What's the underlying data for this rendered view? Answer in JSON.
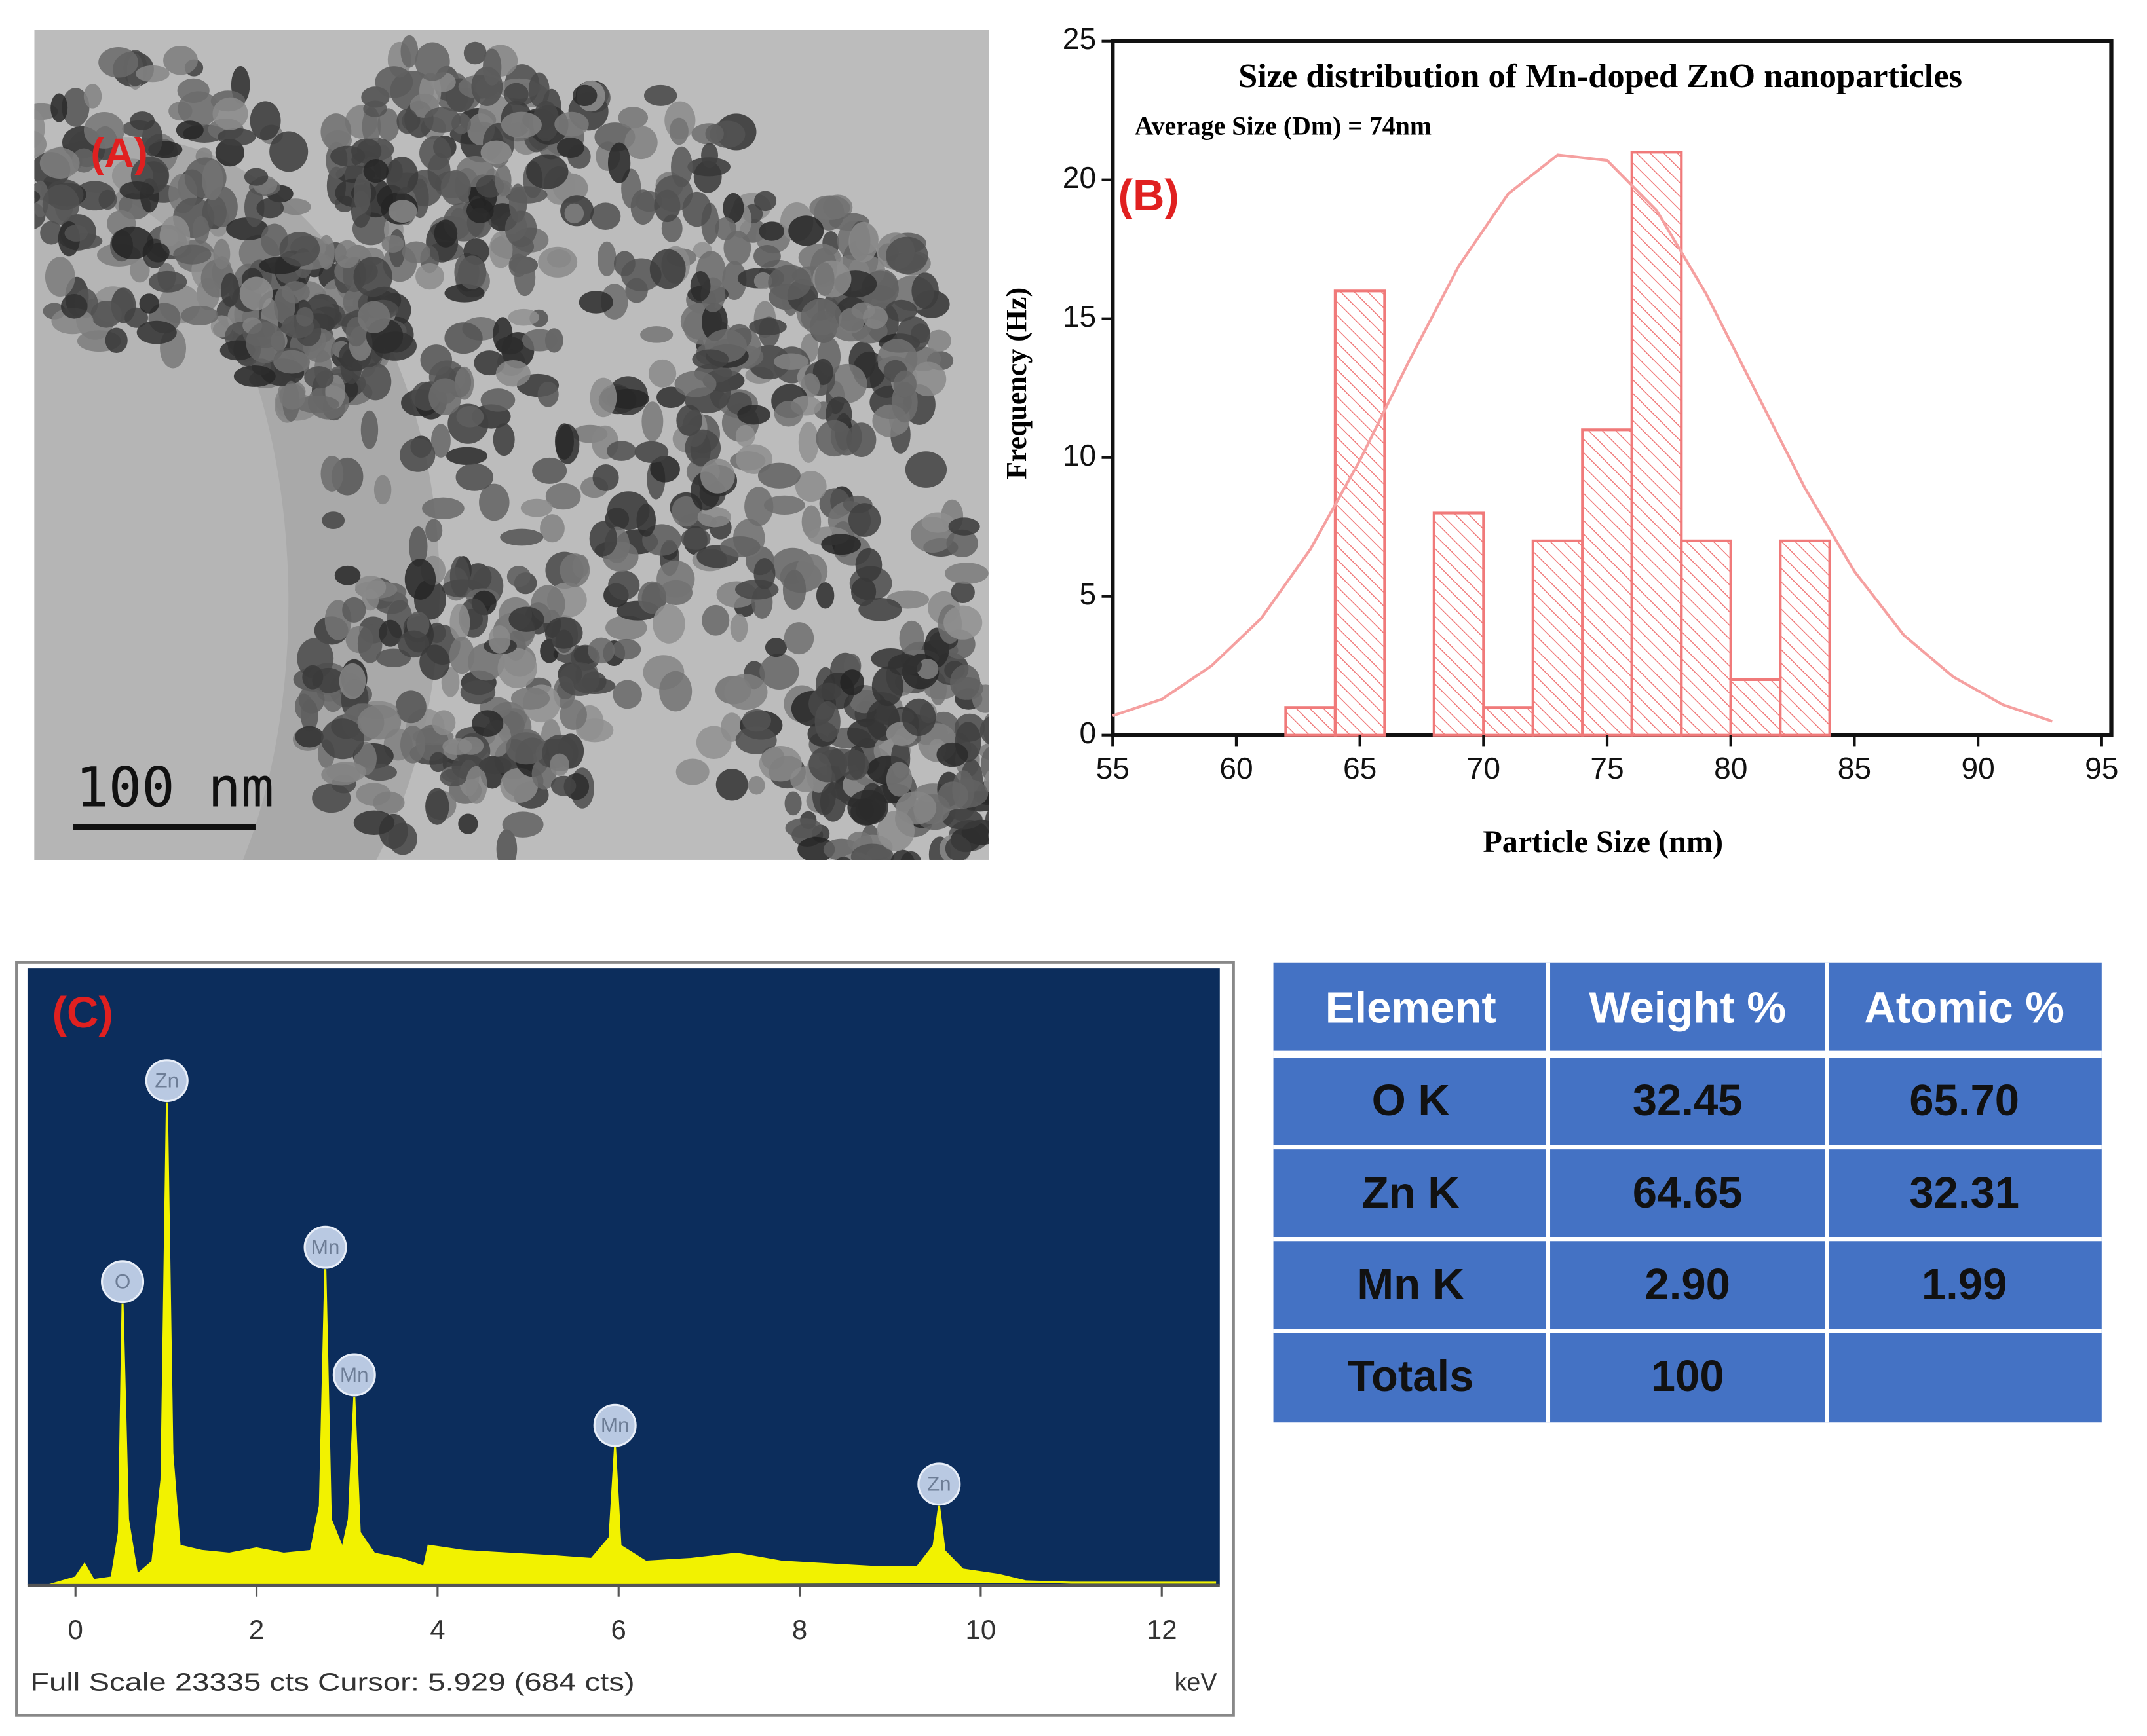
{
  "panel_a": {
    "label": "(A)",
    "scale_bar": "100 nm"
  },
  "chart_data": [
    {
      "type": "histogram",
      "title": "Size distribution of Mn-doped ZnO nanoparticles",
      "subtitle": "Average Size (Dm) = 74nm",
      "panel_label": "(B)",
      "x_label": "Particle Size (nm)",
      "y_label": "Frequency (Hz)",
      "bins": [
        62,
        64,
        66,
        68,
        70,
        72,
        74,
        76,
        78,
        80,
        82,
        84
      ],
      "values": [
        1,
        16,
        0,
        8,
        1,
        7,
        11,
        21,
        7,
        2,
        7
      ],
      "color": "#f07a7a",
      "fit": {
        "x": [
          55,
          57,
          59,
          61,
          63,
          65,
          67,
          69,
          71,
          73,
          75,
          77,
          79,
          81,
          83,
          85,
          87,
          89,
          91,
          93
        ],
        "values": [
          0.7,
          1.3,
          2.5,
          4.2,
          6.7,
          9.9,
          13.5,
          16.9,
          19.5,
          20.9,
          20.7,
          18.9,
          15.9,
          12.4,
          8.9,
          5.9,
          3.6,
          2.1,
          1.1,
          0.5
        ],
        "color": "#f5a0a0"
      },
      "xlim": [
        55,
        95
      ],
      "xticks": [
        55,
        60,
        65,
        70,
        75,
        80,
        85,
        90,
        95
      ],
      "ylim": [
        0,
        25
      ],
      "yticks": [
        0,
        5,
        10,
        15,
        20,
        25
      ]
    },
    {
      "type": "area",
      "panel_label": "(C)",
      "x_label": "keV",
      "footer": "Full Scale 23335 cts Cursor: 5.929  (684 cts)",
      "color": "#f2f200",
      "x": [
        -0.3,
        0.0,
        0.1,
        0.2,
        0.4,
        0.48,
        0.52,
        0.58,
        0.68,
        0.85,
        0.95,
        1.01,
        1.07,
        1.15,
        1.4,
        1.7,
        2.0,
        2.3,
        2.6,
        2.7,
        2.76,
        2.82,
        2.95,
        3.02,
        3.08,
        3.14,
        3.3,
        3.6,
        3.85,
        3.9,
        4.3,
        4.8,
        5.3,
        5.7,
        5.9,
        5.96,
        6.02,
        6.3,
        6.8,
        7.3,
        7.8,
        8.3,
        8.8,
        9.3,
        9.48,
        9.54,
        9.6,
        9.8,
        10.2,
        10.5,
        11,
        12,
        12.6
      ],
      "values": [
        0,
        300,
        800,
        200,
        300,
        2000,
        10650,
        2500,
        400,
        900,
        4000,
        18250,
        5000,
        1500,
        1300,
        1200,
        1400,
        1200,
        1300,
        3000,
        11950,
        2500,
        1400,
        2500,
        7130,
        2000,
        1200,
        1000,
        700,
        1500,
        1300,
        1200,
        1100,
        1000,
        1800,
        5220,
        1500,
        900,
        1000,
        1200,
        900,
        800,
        700,
        700,
        1500,
        3000,
        1300,
        600,
        400,
        150,
        100,
        100,
        100
      ],
      "annotations": [
        {
          "text": "O",
          "x": 0.52,
          "y": 10650
        },
        {
          "text": "Zn",
          "x": 1.01,
          "y": 18250
        },
        {
          "text": "Mn",
          "x": 2.76,
          "y": 11950
        },
        {
          "text": "Mn",
          "x": 3.08,
          "y": 7130
        },
        {
          "text": "Mn",
          "x": 5.96,
          "y": 5220
        },
        {
          "text": "Zn",
          "x": 9.54,
          "y": 3000
        }
      ],
      "xlim": [
        -0.5,
        12.6
      ],
      "xticks": [
        0,
        2,
        4,
        6,
        8,
        10,
        12
      ],
      "ylim": [
        0,
        23335
      ]
    }
  ],
  "table": {
    "header": [
      "Element",
      "Weight %",
      "Atomic %"
    ],
    "rows": [
      [
        "O K",
        "32.45",
        "65.70"
      ],
      [
        "Zn K",
        "64.65",
        "32.31"
      ],
      [
        "Mn K",
        "2.90",
        "1.99"
      ],
      [
        "Totals",
        "100",
        null
      ]
    ]
  }
}
